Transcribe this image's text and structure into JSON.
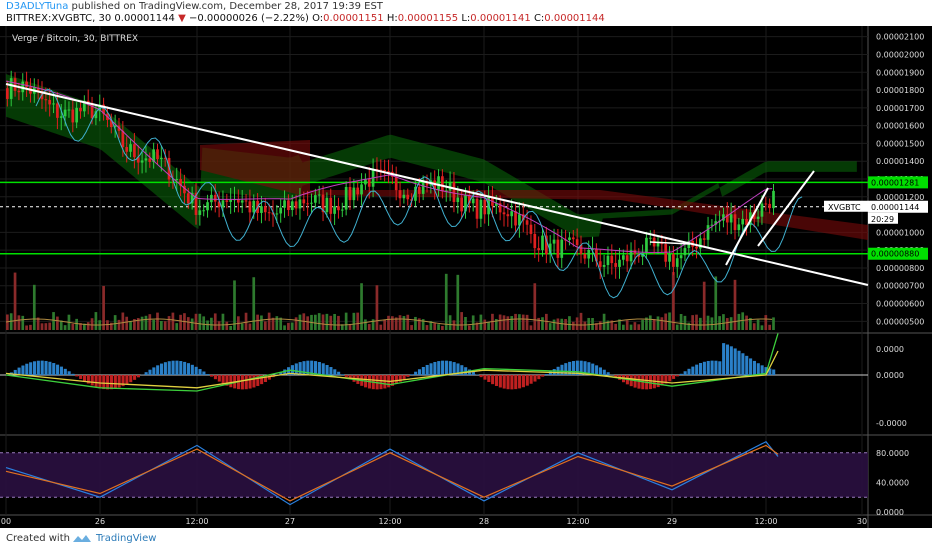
{
  "header": {
    "author": "D3ADLYTuna",
    "published_text": "published on TradingView.com, December 28, 2017 19:39 EST",
    "symbol": "BITTREX:XVGBTC, 30",
    "last": "0.00001144",
    "change": "−0.00000026 (−2.22%)",
    "o_label": "O:",
    "o": "0.00001151",
    "h_label": "H:",
    "h": "0.00001155",
    "l_label": "L:",
    "l": "0.00001141",
    "c_label": "C:",
    "c": "0.00001144"
  },
  "chart_title": "Verge / Bitcoin, 30, BITTREX",
  "price_tag": {
    "symbol": "XVGBTC",
    "value": "0.00001144",
    "countdown": "20:29"
  },
  "level_tags": {
    "upper": "0.00001281",
    "lower": "0.00000880"
  },
  "footer": {
    "created_with": "Created with",
    "brand": "TradingView"
  },
  "colors": {
    "up": "#2ecc40",
    "down": "#e02020",
    "background": "#000000",
    "level_line": "#00e000"
  },
  "chart_data": [
    {
      "type": "candlestick",
      "title": "Verge / Bitcoin, 30, BITTREX",
      "x_tick_labels": [
        "00",
        "26",
        "12:00",
        "27",
        "12:00",
        "28",
        "12:00",
        "29",
        "12:00",
        "30"
      ],
      "y_tick_labels": [
        "0.00002100",
        "0.00002000",
        "0.00001900",
        "0.00001800",
        "0.00001700",
        "0.00001600",
        "0.00001500",
        "0.00001400",
        "0.00001300",
        "0.00001200",
        "0.00001000",
        "0.00000900",
        "0.00000800",
        "0.00000700",
        "0.00000600",
        "0.00000500"
      ],
      "ylim": [
        4.4e-06,
        2.16e-05
      ],
      "last_price": 1.144e-05,
      "horizontal_levels": [
        1.281e-05,
        8.8e-06
      ],
      "price_path": [
        {
          "x": "00",
          "y": 1.81e-05
        },
        {
          "x": "26",
          "y": 1.63e-05
        },
        {
          "x": "12:00",
          "y": 1.18e-05
        },
        {
          "x": "27",
          "y": 1.12e-05
        },
        {
          "x": "12:00",
          "y": 1.3e-05
        },
        {
          "x": "28",
          "y": 1.16e-05
        },
        {
          "x": "12:00",
          "y": 8.5e-06
        },
        {
          "x": "29",
          "y": 8.8e-06
        },
        {
          "x": "12:00",
          "y": 1.18e-05
        }
      ],
      "indicators": [
        "Ichimoku cloud",
        "Volume"
      ]
    },
    {
      "type": "line",
      "title": "MACD",
      "y_tick_labels": [
        "0.0000",
        "0.0000",
        "-0.0000"
      ],
      "series": [
        {
          "values": [
            0.0,
            -0.8,
            -1.0,
            0.3,
            -0.6,
            0.4,
            0.2,
            -0.7,
            0.1,
            2.6
          ]
        },
        {
          "values": [
            0.1,
            -0.5,
            -0.8,
            0.1,
            -0.4,
            0.3,
            0.1,
            -0.5,
            0.0,
            1.5
          ]
        }
      ]
    },
    {
      "type": "line",
      "title": "Stochastic RSI",
      "y_tick_labels": [
        "80.0000",
        "40.0000",
        "0.0000"
      ],
      "ylim": [
        0,
        100
      ],
      "bands": [
        20,
        80
      ],
      "series": [
        {
          "values": [
            60,
            20,
            90,
            10,
            85,
            15,
            80,
            30,
            95,
            75
          ]
        },
        {
          "values": [
            55,
            25,
            85,
            15,
            80,
            20,
            75,
            35,
            90,
            78
          ]
        }
      ]
    }
  ]
}
